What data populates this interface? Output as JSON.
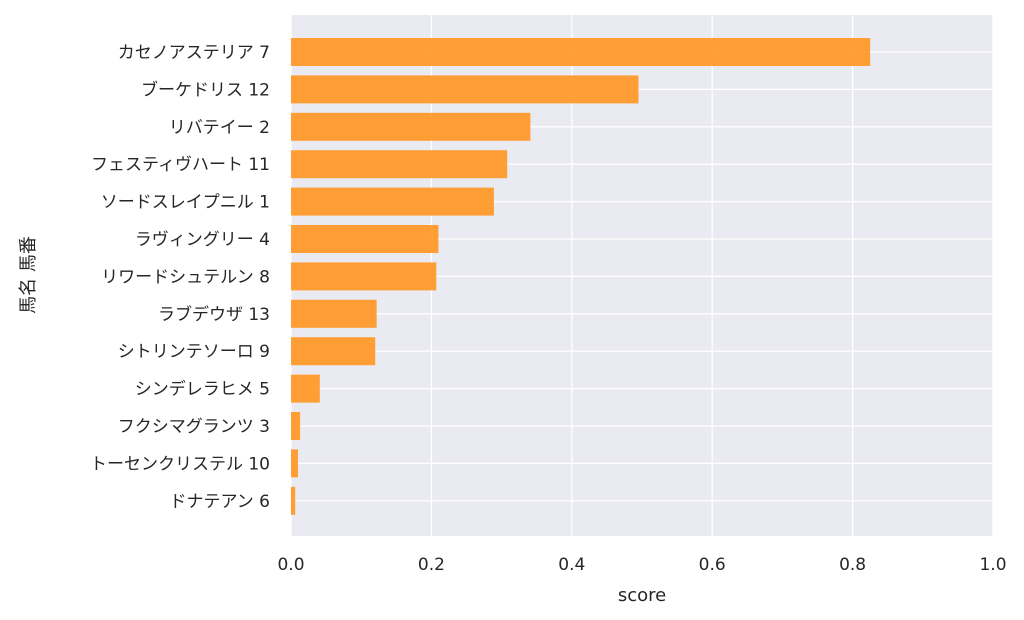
{
  "chart_data": {
    "type": "bar",
    "orientation": "horizontal",
    "categories": [
      "カセノアステリア 7",
      "ブーケドリス 12",
      "リバテイー 2",
      "フェスティヴハート 11",
      "ソードスレイプニル 1",
      "ラヴィングリー 4",
      "リワードシュテルン 8",
      "ラブデウザ 13",
      "シトリンテソーロ 9",
      "シンデレラヒメ 5",
      "フクシマグランツ 3",
      "トーセンクリステル 10",
      "ドナテアン 6"
    ],
    "values": [
      0.825,
      0.495,
      0.341,
      0.308,
      0.289,
      0.21,
      0.207,
      0.122,
      0.12,
      0.041,
      0.013,
      0.01,
      0.006
    ],
    "xlabel": "score",
    "ylabel": "馬名 馬番",
    "xlim": [
      0,
      1.0
    ],
    "xticks": [
      "0.0",
      "0.2",
      "0.4",
      "0.6",
      "0.8",
      "1.0"
    ],
    "grid": true,
    "colors": {
      "bar": "#ff9a2a",
      "plot_background": "#eaeaf2",
      "grid": "#ffffff",
      "text": "#262626"
    }
  }
}
